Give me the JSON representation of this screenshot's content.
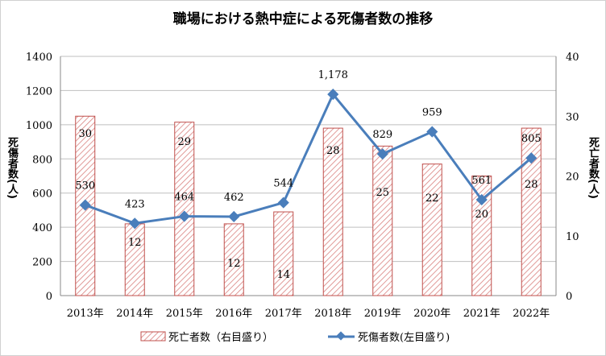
{
  "chart_data": {
    "type": "bar+line",
    "title": "職場における熱中症による死傷者数の推移",
    "categories": [
      "2013年",
      "2014年",
      "2015年",
      "2016年",
      "2017年",
      "2018年",
      "2019年",
      "2020年",
      "2021年",
      "2022年"
    ],
    "series": [
      {
        "name": "死亡者数（右目盛り）",
        "type": "bar",
        "axis": "right",
        "color": "#c0504d",
        "fill": "hatched",
        "values": [
          30,
          12,
          29,
          12,
          14,
          28,
          25,
          22,
          20,
          28
        ],
        "labels": [
          "30",
          "12",
          "29",
          "12",
          "14",
          "28",
          "25",
          "22",
          "20",
          "28"
        ]
      },
      {
        "name": "死傷者数(左目盛り)",
        "type": "line",
        "axis": "left",
        "color": "#4a7ebb",
        "marker": "diamond",
        "values": [
          530,
          423,
          464,
          462,
          544,
          1178,
          829,
          959,
          561,
          805
        ],
        "labels": [
          "530",
          "423",
          "464",
          "462",
          "544",
          "1,178",
          "829",
          "959",
          "561",
          "805"
        ]
      }
    ],
    "ylabel_left": "死傷者数(人)",
    "ylabel_right": "死亡者数(人)",
    "ylim_left": [
      0,
      1400
    ],
    "ylim_right": [
      0,
      40
    ],
    "yticks_left": [
      "0",
      "200",
      "400",
      "600",
      "800",
      "1000",
      "1200",
      "1400"
    ],
    "yticks_right": [
      "0",
      "10",
      "20",
      "30",
      "40"
    ],
    "grid": true,
    "legend": "bottom"
  }
}
